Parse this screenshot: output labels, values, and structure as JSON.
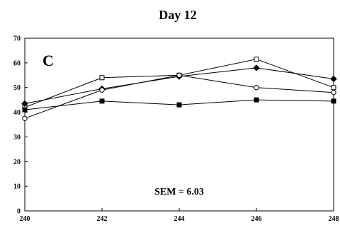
{
  "chart_data": {
    "type": "line",
    "title": "Day 12",
    "panel_label": "C",
    "annotation": "SEM = 6.03",
    "xlabel": "",
    "ylabel": "",
    "xlim": [
      240,
      248
    ],
    "ylim": [
      0,
      70
    ],
    "x_ticks": [
      "240",
      "242",
      "244",
      "246",
      "248"
    ],
    "y_ticks": [
      "0",
      "10",
      "20",
      "30",
      "40",
      "50",
      "60",
      "70"
    ],
    "grid": false,
    "legend": "none",
    "series": [
      {
        "marker": "open-square",
        "x": [
          240,
          242,
          244,
          246,
          248
        ],
        "y": [
          42,
          54,
          55,
          61.5,
          50
        ]
      },
      {
        "marker": "filled-diamond",
        "x": [
          240,
          242,
          244,
          246,
          248
        ],
        "y": [
          43.5,
          49.5,
          54.5,
          58,
          53.5
        ]
      },
      {
        "marker": "open-circle",
        "x": [
          240,
          242,
          244,
          246,
          248
        ],
        "y": [
          37.5,
          49,
          55,
          50,
          48
        ]
      },
      {
        "marker": "filled-square",
        "x": [
          240,
          242,
          244,
          246,
          248
        ],
        "y": [
          41,
          44.5,
          43,
          45,
          44.5
        ]
      }
    ]
  }
}
